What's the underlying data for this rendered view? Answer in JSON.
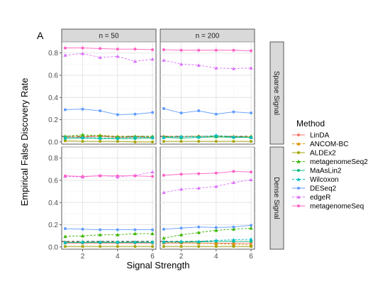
{
  "chart_data": {
    "type": "line",
    "panel_tag": "A",
    "xlabel": "Signal Strength",
    "ylabel": "Empirical False Discovery Rate",
    "x_ticks": [
      2,
      4,
      6
    ],
    "y_ticks": [
      0.0,
      0.2,
      0.4,
      0.6,
      0.8
    ],
    "xlim": [
      0.8,
      6.2
    ],
    "ylim": [
      -0.02,
      0.9
    ],
    "columns": [
      "n = 50",
      "n = 200"
    ],
    "rows": [
      "Sparse Signal",
      "Dense Signal"
    ],
    "reference_line": 0.05,
    "x": [
      1,
      2,
      3,
      4,
      5,
      6
    ],
    "legend_title": "Method",
    "series": [
      {
        "name": "LinDA",
        "color": "#F8766D",
        "marker": "circle",
        "dash": "solid",
        "values": [
          [
            [
              0.04,
              0.045,
              0.05,
              0.04,
              0.045,
              0.04
            ],
            [
              0.045,
              0.045,
              0.05,
              0.045,
              0.045,
              0.045
            ]
          ],
          [
            [
              0.035,
              0.035,
              0.035,
              0.035,
              0.035,
              0.035
            ],
            [
              0.035,
              0.035,
              0.035,
              0.035,
              0.035,
              0.035
            ]
          ]
        ]
      },
      {
        "name": "ANCOM-BC",
        "color": "#D89000",
        "marker": "triangle",
        "dash": "dashed",
        "values": [
          [
            [
              0.05,
              0.05,
              0.06,
              0.05,
              0.05,
              0.045
            ],
            [
              0.05,
              0.05,
              0.05,
              0.05,
              0.05,
              0.045
            ]
          ],
          [
            [
              0.045,
              0.045,
              0.045,
              0.045,
              0.045,
              0.045
            ],
            [
              0.04,
              0.04,
              0.035,
              0.03,
              0.025,
              0.02
            ]
          ]
        ]
      },
      {
        "name": "ALDEx2",
        "color": "#A3A500",
        "marker": "circle",
        "dash": "solid",
        "values": [
          [
            [
              0.01,
              0.005,
              0.005,
              0.005,
              0.0,
              0.0
            ],
            [
              0.005,
              0.005,
              0.005,
              0.005,
              0.005,
              0.005
            ]
          ],
          [
            [
              0.005,
              0.005,
              0.005,
              0.005,
              0.005,
              0.005
            ],
            [
              0.005,
              0.005,
              0.005,
              0.005,
              0.005,
              0.005
            ]
          ]
        ]
      },
      {
        "name": "metagenomeSeq2",
        "color": "#39B600",
        "marker": "triangle",
        "dash": "dashed",
        "values": [
          [
            [
              0.05,
              0.065,
              0.055,
              0.045,
              0.05,
              0.05
            ],
            [
              0.045,
              0.05,
              0.05,
              0.05,
              0.045,
              0.05
            ]
          ],
          [
            [
              0.095,
              0.1,
              0.11,
              0.11,
              0.12,
              0.12
            ],
            [
              0.08,
              0.11,
              0.13,
              0.15,
              0.16,
              0.17
            ]
          ]
        ]
      },
      {
        "name": "MaAsLin2",
        "color": "#00BF7D",
        "marker": "circle",
        "dash": "solid",
        "values": [
          [
            [
              0.03,
              0.035,
              0.03,
              0.03,
              0.03,
              0.035
            ],
            [
              0.04,
              0.035,
              0.04,
              0.045,
              0.04,
              0.04
            ]
          ],
          [
            [
              0.04,
              0.04,
              0.04,
              0.04,
              0.04,
              0.04
            ],
            [
              0.045,
              0.045,
              0.045,
              0.05,
              0.05,
              0.05
            ]
          ]
        ]
      },
      {
        "name": "Wilcoxon",
        "color": "#00BFC4",
        "marker": "triangle",
        "dash": "dashed",
        "values": [
          [
            [
              0.04,
              0.04,
              0.035,
              0.035,
              0.04,
              0.04
            ],
            [
              0.04,
              0.05,
              0.045,
              0.06,
              0.045,
              0.04
            ]
          ],
          [
            [
              0.04,
              0.045,
              0.045,
              0.045,
              0.045,
              0.045
            ],
            [
              0.045,
              0.05,
              0.05,
              0.06,
              0.065,
              0.07
            ]
          ]
        ]
      },
      {
        "name": "DESeq2",
        "color": "#619CFF",
        "marker": "circle",
        "dash": "solid",
        "values": [
          [
            [
              0.29,
              0.295,
              0.28,
              0.245,
              0.25,
              0.265
            ],
            [
              0.3,
              0.26,
              0.28,
              0.25,
              0.27,
              0.26
            ]
          ],
          [
            [
              0.165,
              0.16,
              0.155,
              0.155,
              0.155,
              0.155
            ],
            [
              0.16,
              0.17,
              0.18,
              0.175,
              0.18,
              0.195
            ]
          ]
        ]
      },
      {
        "name": "edgeR",
        "color": "#DB72FB",
        "marker": "triangle",
        "dash": "dashed",
        "values": [
          [
            [
              0.78,
              0.795,
              0.76,
              0.77,
              0.725,
              0.745
            ],
            [
              0.735,
              0.7,
              0.69,
              0.665,
              0.66,
              0.665
            ]
          ],
          [
            [
              0.635,
              0.63,
              0.645,
              0.63,
              0.645,
              0.675
            ],
            [
              0.49,
              0.52,
              0.53,
              0.545,
              0.58,
              0.605
            ]
          ]
        ]
      },
      {
        "name": "metagenomeSeq",
        "color": "#FF61C3",
        "marker": "circle",
        "dash": "solid",
        "values": [
          [
            [
              0.845,
              0.845,
              0.84,
              0.835,
              0.835,
              0.83
            ],
            [
              0.83,
              0.825,
              0.825,
              0.825,
              0.825,
              0.82
            ]
          ],
          [
            [
              0.64,
              0.635,
              0.64,
              0.64,
              0.64,
              0.635
            ],
            [
              0.645,
              0.655,
              0.66,
              0.665,
              0.68,
              0.675
            ]
          ]
        ]
      }
    ]
  }
}
